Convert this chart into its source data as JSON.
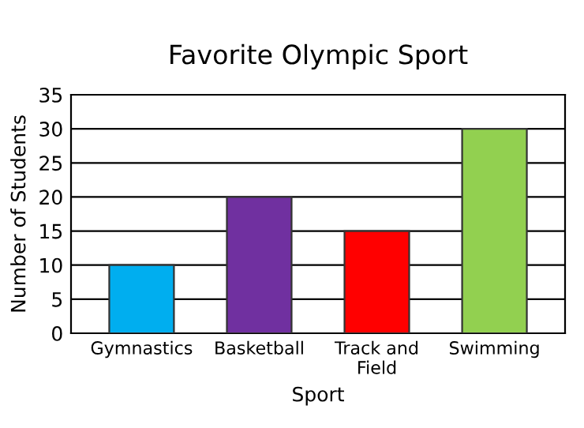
{
  "chart_data": {
    "type": "bar",
    "title": "Favorite Olympic Sport",
    "xlabel": "Sport",
    "ylabel": "Number of Students",
    "categories": [
      "Gymnastics",
      "Basketball",
      "Track and\nField",
      "Swimming"
    ],
    "values": [
      10,
      20,
      15,
      30
    ],
    "colors": [
      "#00aeef",
      "#7030a0",
      "#ff0000",
      "#92d050"
    ],
    "ylim": [
      0,
      35
    ],
    "yticks": [
      0,
      5,
      10,
      15,
      20,
      25,
      30,
      35
    ],
    "grid": "y"
  }
}
